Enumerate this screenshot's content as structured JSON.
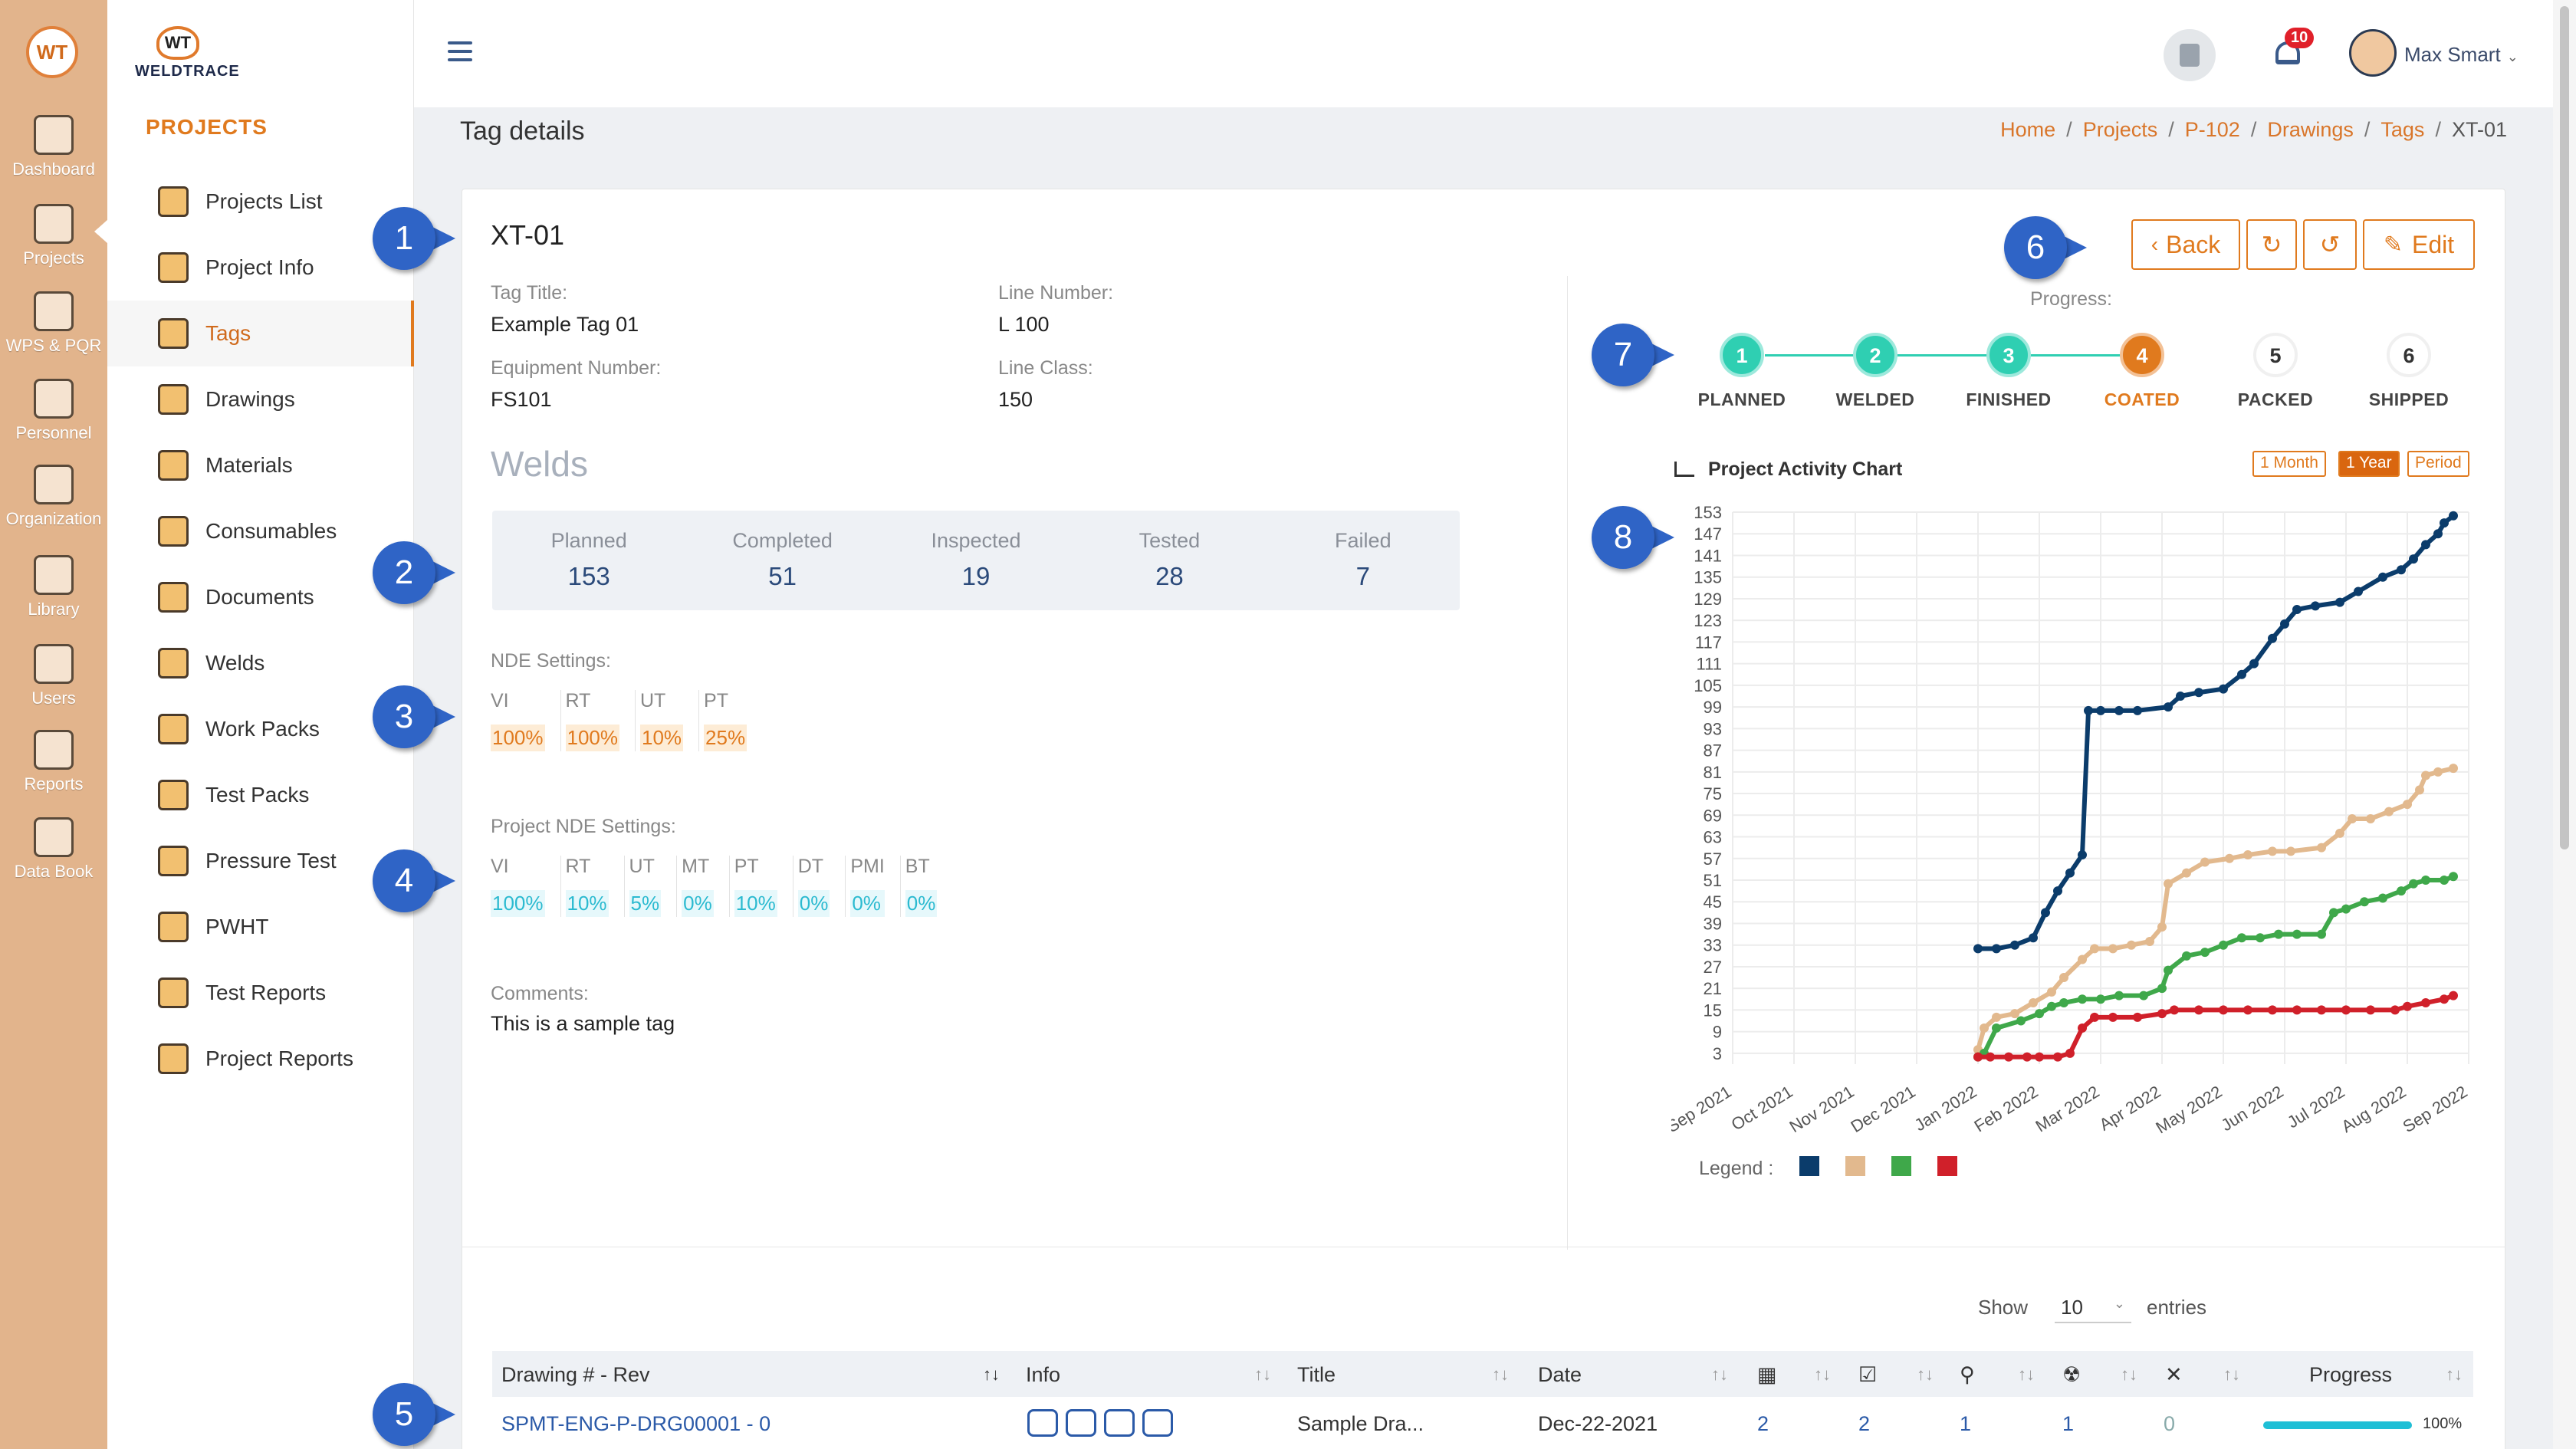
{
  "app": {
    "logo_text": "WT",
    "brand_name": "WELDTRACE"
  },
  "rail": [
    {
      "label": "Dashboard",
      "icon": "monitor-icon"
    },
    {
      "label": "Projects",
      "icon": "folder-icon"
    },
    {
      "label": "WPS & PQR",
      "icon": "clipboard-icon"
    },
    {
      "label": "Personnel",
      "icon": "welder-icon"
    },
    {
      "label": "Organization",
      "icon": "org-chart-icon"
    },
    {
      "label": "Library",
      "icon": "books-icon"
    },
    {
      "label": "Users",
      "icon": "users-icon"
    },
    {
      "label": "Reports",
      "icon": "report-icon"
    },
    {
      "label": "Data Book",
      "icon": "data-book-icon"
    }
  ],
  "menu": {
    "heading": "PROJECTS",
    "items": [
      {
        "label": "Projects List"
      },
      {
        "label": "Project Info"
      },
      {
        "label": "Tags"
      },
      {
        "label": "Drawings"
      },
      {
        "label": "Materials"
      },
      {
        "label": "Consumables"
      },
      {
        "label": "Documents"
      },
      {
        "label": "Welds"
      },
      {
        "label": "Work Packs"
      },
      {
        "label": "Test Packs"
      },
      {
        "label": "Pressure Test"
      },
      {
        "label": "PWHT"
      },
      {
        "label": "Test Reports"
      },
      {
        "label": "Project Reports"
      }
    ]
  },
  "topbar": {
    "notifications": "10",
    "user_name": "Max Smart"
  },
  "page": {
    "title": "Tag details",
    "breadcrumbs": [
      "Home",
      "Projects",
      "P-102",
      "Drawings",
      "Tags"
    ],
    "breadcrumb_current": "XT-01"
  },
  "tag": {
    "id": "XT-01",
    "title_label": "Tag Title:",
    "title": "Example Tag 01",
    "line_number_label": "Line Number:",
    "line_number": "L 100",
    "equipment_label": "Equipment Number:",
    "equipment": "FS101",
    "line_class_label": "Line Class:",
    "line_class": "150"
  },
  "welds": {
    "heading": "Welds",
    "stats": [
      {
        "label": "Planned",
        "value": "153"
      },
      {
        "label": "Completed",
        "value": "51"
      },
      {
        "label": "Inspected",
        "value": "19"
      },
      {
        "label": "Tested",
        "value": "28"
      },
      {
        "label": "Failed",
        "value": "7"
      }
    ]
  },
  "nde": {
    "label": "NDE Settings:",
    "items": [
      {
        "k": "VI",
        "v": "100%"
      },
      {
        "k": "RT",
        "v": "100%"
      },
      {
        "k": "UT",
        "v": "10%"
      },
      {
        "k": "PT",
        "v": "25%"
      }
    ]
  },
  "project_nde": {
    "label": "Project NDE Settings:",
    "items": [
      {
        "k": "VI",
        "v": "100%"
      },
      {
        "k": "RT",
        "v": "10%"
      },
      {
        "k": "UT",
        "v": "5%"
      },
      {
        "k": "MT",
        "v": "0%"
      },
      {
        "k": "PT",
        "v": "10%"
      },
      {
        "k": "DT",
        "v": "0%"
      },
      {
        "k": "PMI",
        "v": "0%"
      },
      {
        "k": "BT",
        "v": "0%"
      }
    ]
  },
  "comments": {
    "label": "Comments:",
    "text": "This is a sample tag"
  },
  "actions": {
    "back": "Back",
    "edit": "Edit"
  },
  "progress": {
    "label": "Progress:",
    "steps": [
      {
        "n": "1",
        "label": "PLANNED",
        "state": "done"
      },
      {
        "n": "2",
        "label": "WELDED",
        "state": "done"
      },
      {
        "n": "3",
        "label": "FINISHED",
        "state": "done"
      },
      {
        "n": "4",
        "label": "COATED",
        "state": "current"
      },
      {
        "n": "5",
        "label": "PACKED",
        "state": "todo"
      },
      {
        "n": "6",
        "label": "SHIPPED",
        "state": "todo"
      }
    ]
  },
  "chart_controls": {
    "title": "Project Activity Chart",
    "ranges": [
      "1 Month",
      "1 Year",
      "Period"
    ],
    "active_range": "1 Year",
    "legend_label": "Legend :"
  },
  "chart_data": {
    "type": "line",
    "title": "Project Activity Chart",
    "x_categories": [
      "Sep 2021",
      "Oct 2021",
      "Nov 2021",
      "Dec 2021",
      "Jan 2022",
      "Feb 2022",
      "Mar 2022",
      "Apr 2022",
      "May 2022",
      "Jun 2022",
      "Jul 2022",
      "Aug 2022",
      "Sep 2022"
    ],
    "y_ticks": [
      3,
      9,
      15,
      21,
      27,
      33,
      39,
      45,
      51,
      57,
      63,
      69,
      75,
      81,
      87,
      93,
      99,
      105,
      111,
      117,
      123,
      129,
      135,
      141,
      147,
      153
    ],
    "ylim": [
      0,
      153
    ],
    "xlim": [
      0,
      12
    ],
    "grid": true,
    "series": [
      {
        "color": "#0b3c6b",
        "points": [
          [
            4.0,
            32
          ],
          [
            4.3,
            32
          ],
          [
            4.6,
            33
          ],
          [
            4.9,
            35
          ],
          [
            5.1,
            42
          ],
          [
            5.3,
            48
          ],
          [
            5.5,
            53
          ],
          [
            5.7,
            58
          ],
          [
            5.8,
            98
          ],
          [
            6.0,
            98
          ],
          [
            6.3,
            98
          ],
          [
            6.6,
            98
          ],
          [
            7.1,
            99
          ],
          [
            7.3,
            102
          ],
          [
            7.6,
            103
          ],
          [
            8.0,
            104
          ],
          [
            8.3,
            108
          ],
          [
            8.5,
            111
          ],
          [
            8.8,
            118
          ],
          [
            9.0,
            122
          ],
          [
            9.2,
            126
          ],
          [
            9.5,
            127
          ],
          [
            9.9,
            128
          ],
          [
            10.2,
            131
          ],
          [
            10.6,
            135
          ],
          [
            10.9,
            137
          ],
          [
            11.1,
            140
          ],
          [
            11.3,
            144
          ],
          [
            11.5,
            147
          ],
          [
            11.6,
            150
          ],
          [
            11.75,
            152
          ]
        ]
      },
      {
        "color": "#e2b98e",
        "points": [
          [
            4.0,
            4
          ],
          [
            4.1,
            10
          ],
          [
            4.3,
            13
          ],
          [
            4.6,
            14
          ],
          [
            4.9,
            17
          ],
          [
            5.2,
            20
          ],
          [
            5.4,
            24
          ],
          [
            5.7,
            29
          ],
          [
            5.9,
            32
          ],
          [
            6.2,
            32
          ],
          [
            6.5,
            33
          ],
          [
            6.8,
            34
          ],
          [
            7.0,
            38
          ],
          [
            7.1,
            50
          ],
          [
            7.4,
            53
          ],
          [
            7.7,
            56
          ],
          [
            8.1,
            57
          ],
          [
            8.4,
            58
          ],
          [
            8.8,
            59
          ],
          [
            9.1,
            59
          ],
          [
            9.6,
            60
          ],
          [
            9.9,
            64
          ],
          [
            10.1,
            68
          ],
          [
            10.4,
            68
          ],
          [
            10.7,
            70
          ],
          [
            11.0,
            72
          ],
          [
            11.2,
            76
          ],
          [
            11.3,
            80
          ],
          [
            11.5,
            81
          ],
          [
            11.75,
            82
          ]
        ]
      },
      {
        "color": "#3fa84a",
        "points": [
          [
            4.0,
            2
          ],
          [
            4.1,
            3
          ],
          [
            4.3,
            10
          ],
          [
            4.7,
            12
          ],
          [
            5.0,
            14
          ],
          [
            5.2,
            16
          ],
          [
            5.4,
            17
          ],
          [
            5.7,
            18
          ],
          [
            6.0,
            18
          ],
          [
            6.3,
            19
          ],
          [
            6.7,
            19
          ],
          [
            7.0,
            21
          ],
          [
            7.1,
            26
          ],
          [
            7.4,
            30
          ],
          [
            7.7,
            31
          ],
          [
            8.0,
            33
          ],
          [
            8.3,
            35
          ],
          [
            8.6,
            35
          ],
          [
            8.9,
            36
          ],
          [
            9.2,
            36
          ],
          [
            9.6,
            36
          ],
          [
            9.8,
            42
          ],
          [
            10.0,
            43
          ],
          [
            10.3,
            45
          ],
          [
            10.6,
            46
          ],
          [
            10.9,
            48
          ],
          [
            11.1,
            50
          ],
          [
            11.3,
            51
          ],
          [
            11.6,
            51
          ],
          [
            11.75,
            52
          ]
        ]
      },
      {
        "color": "#d0202a",
        "points": [
          [
            4.0,
            2
          ],
          [
            4.2,
            2
          ],
          [
            4.5,
            2
          ],
          [
            4.8,
            2
          ],
          [
            5.0,
            2
          ],
          [
            5.3,
            2
          ],
          [
            5.5,
            3
          ],
          [
            5.7,
            10
          ],
          [
            5.9,
            13
          ],
          [
            6.2,
            13
          ],
          [
            6.6,
            13
          ],
          [
            7.0,
            14
          ],
          [
            7.2,
            15
          ],
          [
            7.6,
            15
          ],
          [
            8.0,
            15
          ],
          [
            8.4,
            15
          ],
          [
            8.8,
            15
          ],
          [
            9.2,
            15
          ],
          [
            9.6,
            15
          ],
          [
            10.0,
            15
          ],
          [
            10.4,
            15
          ],
          [
            10.8,
            15
          ],
          [
            11.0,
            16
          ],
          [
            11.3,
            17
          ],
          [
            11.6,
            18
          ],
          [
            11.75,
            19
          ]
        ]
      }
    ]
  },
  "table": {
    "show_label": "Show",
    "show_value": "10",
    "entries_label": "entries",
    "headers": [
      "Drawing # - Rev",
      "Info",
      "Title",
      "Date",
      "Progress"
    ],
    "rows": [
      {
        "drawing": "SPMT-ENG-P-DRG00001 - 0",
        "title": "Sample Dra...",
        "date": "Dec-22-2021",
        "c1": "2",
        "c2": "2",
        "c3": "1",
        "c4": "1",
        "c5": "0",
        "progress": "100%",
        "progress_value": 1.0
      }
    ]
  }
}
